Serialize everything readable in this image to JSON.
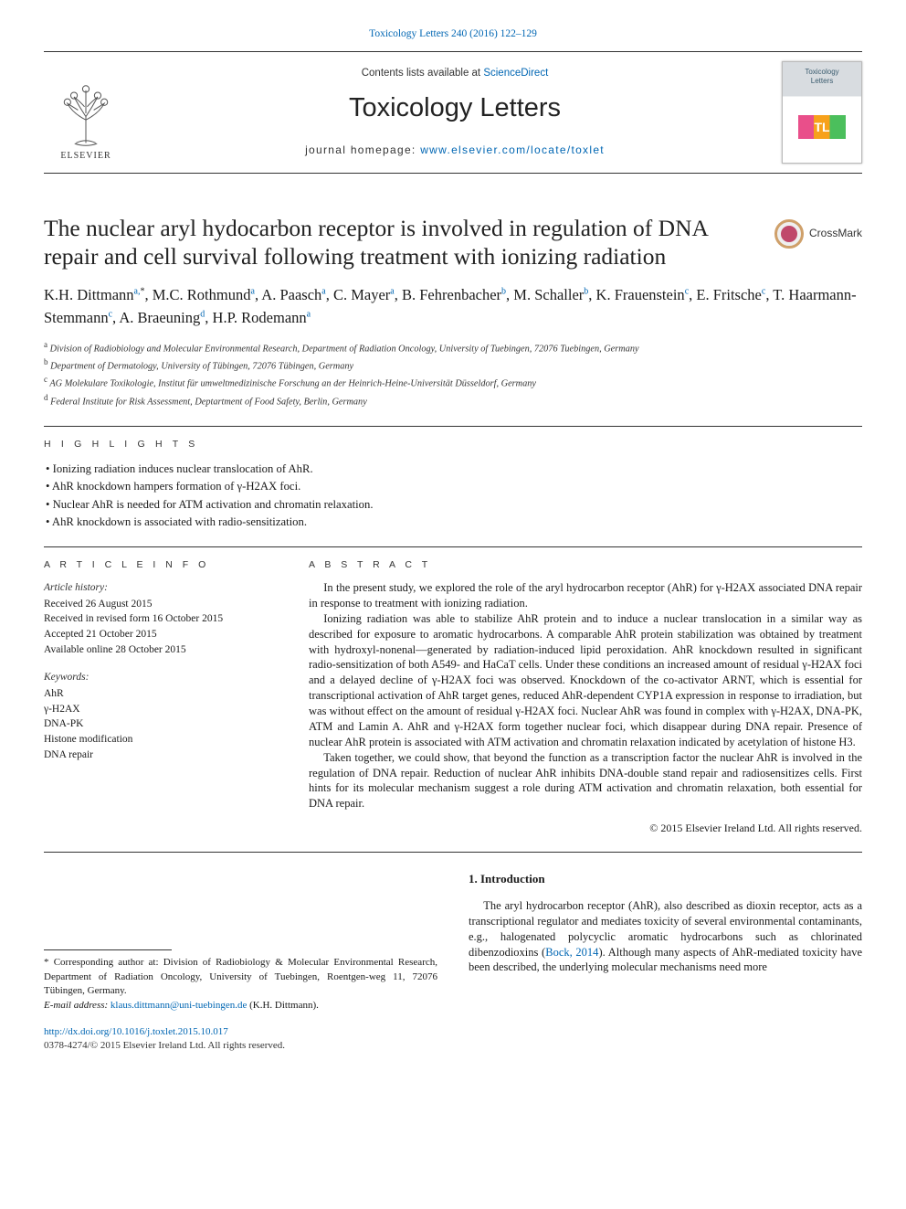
{
  "citation_header": "Toxicology Letters 240 (2016) 122–129",
  "masthead": {
    "contents_line_pre": "Contents lists available at ",
    "contents_line_link": "ScienceDirect",
    "journal_name": "Toxicology Letters",
    "homepage_pre": "journal homepage: ",
    "homepage_link": "www.elsevier.com/locate/toxlet",
    "elsevier_word": "ELSEVIER",
    "cover_title_l1": "Toxicology",
    "cover_title_l2": "Letters",
    "cover_badge": "TL"
  },
  "article": {
    "title": "The nuclear aryl hydocarbon receptor is involved in regulation of DNA repair and cell survival following treatment with ionizing radiation",
    "crossmark_label": "CrossMark",
    "authors_html": "K.H. Dittmann<sup>a,</sup><sup class=\"star\">*</sup>, M.C. Rothmund<sup>a</sup>, A. Paasch<sup>a</sup>, C. Mayer<sup>a</sup>, B. Fehrenbacher<sup>b</sup>, M. Schaller<sup>b</sup>, K. Frauenstein<sup>c</sup>, E. Fritsche<sup>c</sup>, T. Haarmann-Stemmann<sup>c</sup>, A. Braeuning<sup>d</sup>, H.P. Rodemann<sup>a</sup>",
    "affiliations": [
      "a Division of Radiobiology and Molecular Environmental Research, Department of Radiation Oncology, University of Tuebingen, 72076 Tuebingen, Germany",
      "b Department of Dermatology, University of Tübingen, 72076 Tübingen, Germany",
      "c AG Molekulare Toxikologie, Institut für umweltmedizinische Forschung an der Heinrich-Heine-Universität Düsseldorf, Germany",
      "d Federal Institute for Risk Assessment, Deptartment of Food Safety, Berlin, Germany"
    ]
  },
  "highlights": {
    "label": "H I G H L I G H T S",
    "items": [
      "Ionizing radiation induces nuclear translocation of AhR.",
      "AhR knockdown hampers formation of γ-H2AX foci.",
      "Nuclear AhR is needed for ATM activation and chromatin relaxation.",
      "AhR knockdown is associated with radio-sensitization."
    ]
  },
  "article_info": {
    "heading": "A R T I C L E   I N F O",
    "history_label": "Article history:",
    "history": [
      "Received 26 August 2015",
      "Received in revised form 16 October 2015",
      "Accepted 21 October 2015",
      "Available online 28 October 2015"
    ],
    "keywords_label": "Keywords:",
    "keywords": [
      "AhR",
      "γ-H2AX",
      "DNA-PK",
      "Histone modification",
      "DNA repair"
    ]
  },
  "abstract": {
    "heading": "A B S T R A C T",
    "p1": "In the present study, we explored the role of the aryl hydrocarbon receptor (AhR) for γ-H2AX associated DNA repair in response to treatment with ionizing radiation.",
    "p2": "Ionizing radiation was able to stabilize AhR protein and to induce a nuclear translocation in a similar way as described for exposure to aromatic hydrocarbons. A comparable AhR protein stabilization was obtained by treatment with hydroxyl-nonenal—generated by radiation-induced lipid peroxidation. AhR knockdown resulted in significant radio-sensitization of both A549- and HaCaT cells. Under these conditions an increased amount of residual γ-H2AX foci and a delayed decline of γ-H2AX foci was observed. Knockdown of the co-activator ARNT, which is essential for transcriptional activation of AhR target genes, reduced AhR-dependent CYP1A expression in response to irradiation, but was without effect on the amount of residual γ-H2AX foci. Nuclear AhR was found in complex with γ-H2AX, DNA-PK, ATM and Lamin A. AhR and γ-H2AX form together nuclear foci, which disappear during DNA repair. Presence of nuclear AhR protein is associated with ATM activation and chromatin relaxation indicated by acetylation of histone H3.",
    "p3": "Taken together, we could show, that beyond the function as a transcription factor the nuclear AhR is involved in the regulation of DNA repair. Reduction of nuclear AhR inhibits DNA-double stand repair and radiosensitizes cells. First hints for its molecular mechanism suggest a role during ATM activation and chromatin relaxation, both essential for DNA repair.",
    "copyright": "© 2015 Elsevier Ireland Ltd. All rights reserved."
  },
  "body": {
    "intro_heading": "1. Introduction",
    "intro_p1_pre": "The aryl hydrocarbon receptor (AhR), also described as dioxin receptor, acts as a transcriptional regulator and mediates toxicity of several environmental contaminants, e.g., halogenated polycyclic aromatic hydrocarbons such as chlorinated dibenzodioxins (",
    "intro_p1_cite": "Bock, 2014",
    "intro_p1_post": "). Although many aspects of AhR-mediated toxicity have been described, the underlying molecular mechanisms need more"
  },
  "footnotes": {
    "corr_pre": "* Corresponding author at: Division of Radiobiology & Molecular Environmental Research, Department of Radiation Oncology, University of Tuebingen, Roentgen-weg 11, 72076 Tübingen, Germany.",
    "email_label": "E-mail address: ",
    "email": "klaus.dittmann@uni-tuebingen.de",
    "email_post": " (K.H. Dittmann)."
  },
  "footer": {
    "doi": "http://dx.doi.org/10.1016/j.toxlet.2015.10.017",
    "issn": "0378-4274/© 2015 Elsevier Ireland Ltd. All rights reserved."
  },
  "colors": {
    "link": "#0066b3",
    "text": "#1a1a1a",
    "rule": "#333333"
  }
}
